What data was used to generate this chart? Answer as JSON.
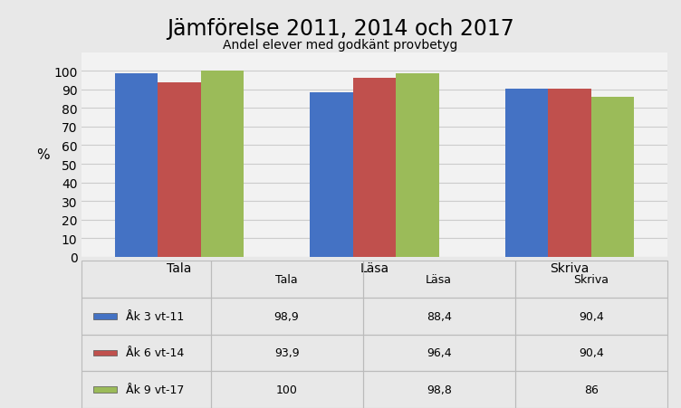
{
  "title": "Jämförelse 2011, 2014 och 2017",
  "subtitle": "Andel elever med godkänt provbetyg",
  "categories": [
    "Tala",
    "Läsa",
    "Skriva"
  ],
  "series": [
    {
      "label": "Åk 3 vt-11",
      "color": "#4472C4",
      "values": [
        98.9,
        88.4,
        90.4
      ]
    },
    {
      "label": "Åk 6 vt-14",
      "color": "#C0504D",
      "values": [
        93.9,
        96.4,
        90.4
      ]
    },
    {
      "label": "Åk 9 vt-17",
      "color": "#9BBB59",
      "values": [
        100,
        98.8,
        86
      ]
    }
  ],
  "ylabel": "%",
  "ylim": [
    0,
    110
  ],
  "yticks": [
    0,
    10,
    20,
    30,
    40,
    50,
    60,
    70,
    80,
    90,
    100
  ],
  "table_data": [
    [
      "98,9",
      "88,4",
      "90,4"
    ],
    [
      "93,9",
      "96,4",
      "90,4"
    ],
    [
      "100",
      "98,8",
      "86"
    ]
  ],
  "bg_color": "#E8E8E8",
  "plot_bg_color": "#F2F2F2",
  "bar_width": 0.22,
  "title_fontsize": 17,
  "subtitle_fontsize": 10,
  "axis_fontsize": 10,
  "table_fontsize": 9,
  "grid_color": "#CCCCCC"
}
